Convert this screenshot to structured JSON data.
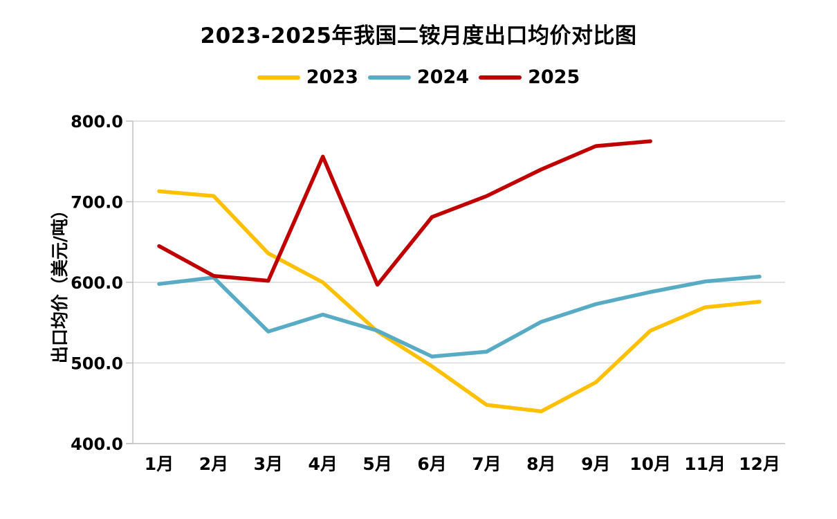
{
  "title": "2023-2025年我国二铵月度出口均价对比图",
  "y_axis_title": "出口均价（美元/吨）",
  "chart_data": {
    "type": "line",
    "title": "2023-2025年我国二铵月度出口均价对比图",
    "xlabel": "",
    "ylabel": "出口均价（美元/吨）",
    "categories": [
      "1月",
      "2月",
      "3月",
      "4月",
      "5月",
      "6月",
      "7月",
      "8月",
      "9月",
      "10月",
      "11月",
      "12月"
    ],
    "series": [
      {
        "name": "2023",
        "color": "#FFC000",
        "values": [
          713,
          707,
          636,
          600,
          539,
          496,
          448,
          440,
          476,
          540,
          569,
          576
        ]
      },
      {
        "name": "2024",
        "color": "#58ABC4",
        "values": [
          598,
          606,
          539,
          560,
          540,
          508,
          514,
          551,
          573,
          588,
          601,
          607
        ]
      },
      {
        "name": "2025",
        "color": "#C00000",
        "values": [
          645,
          608,
          602,
          756,
          597,
          681,
          707,
          740,
          769,
          775,
          null,
          null
        ]
      }
    ],
    "ylim": [
      400,
      800
    ],
    "ytick_step": 100,
    "ytick_decimals": 1,
    "grid": true,
    "legend_position": "top"
  },
  "colors": {
    "background": "#FFFFFF",
    "gridline": "#D9D9D9",
    "axis": "#BFBFBF",
    "text": "#000000"
  }
}
